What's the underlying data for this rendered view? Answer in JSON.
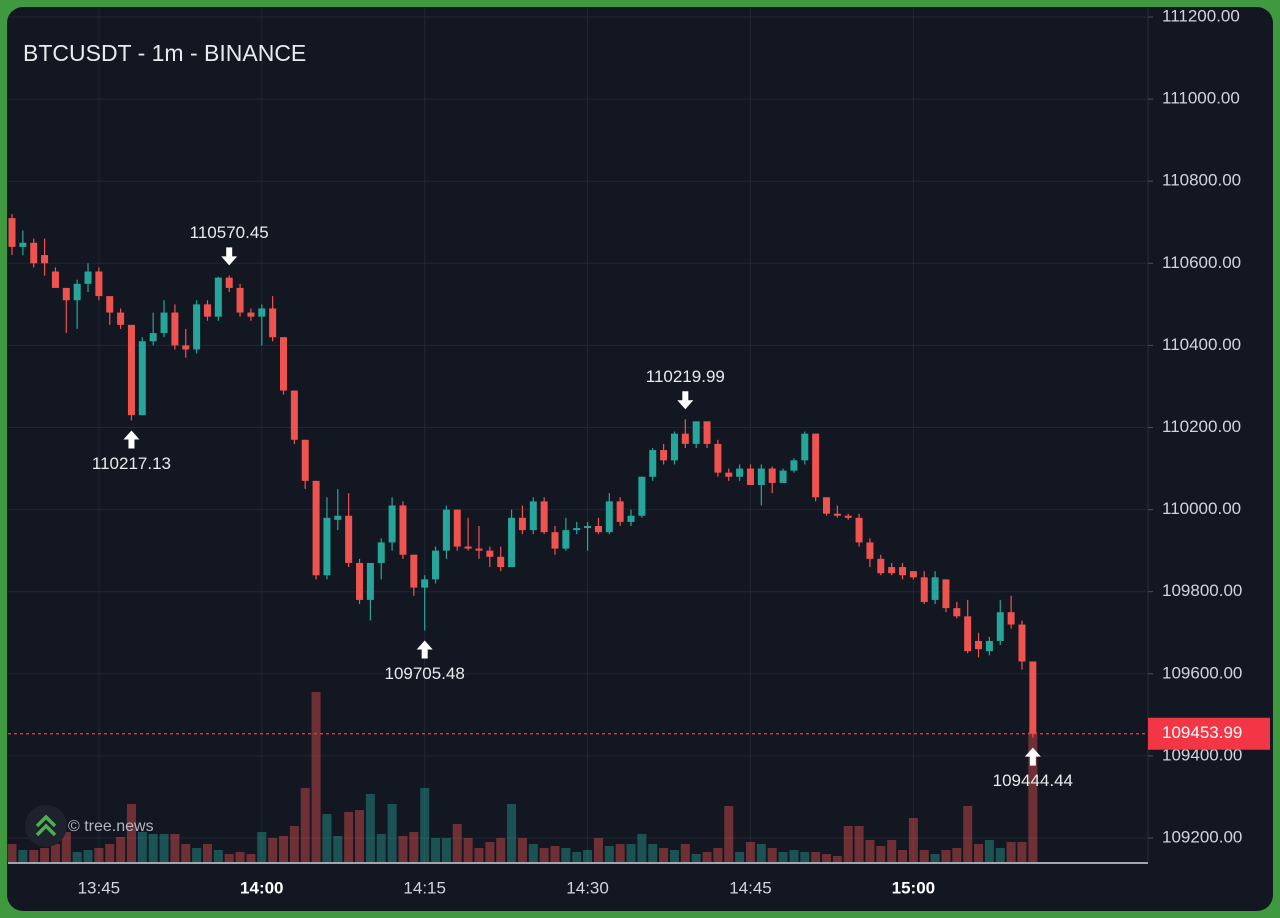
{
  "chart_data": {
    "type": "candlestick",
    "title": "BTCUSDT - 1m - BINANCE",
    "watermark": "© tree.news",
    "up_color": "#26a69a",
    "down_color": "#ef5350",
    "grid": true,
    "x": [
      "13:37",
      "13:38",
      "13:39",
      "13:40",
      "13:41",
      "13:42",
      "13:43",
      "13:44",
      "13:45",
      "13:46",
      "13:47",
      "13:48",
      "13:49",
      "13:50",
      "13:51",
      "13:52",
      "13:53",
      "13:54",
      "13:55",
      "13:56",
      "13:57",
      "13:58",
      "13:59",
      "14:00",
      "14:01",
      "14:02",
      "14:03",
      "14:04",
      "14:05",
      "14:06",
      "14:07",
      "14:08",
      "14:09",
      "14:10",
      "14:11",
      "14:12",
      "14:13",
      "14:14",
      "14:15",
      "14:16",
      "14:17",
      "14:18",
      "14:19",
      "14:20",
      "14:21",
      "14:22",
      "14:23",
      "14:24",
      "14:25",
      "14:26",
      "14:27",
      "14:28",
      "14:29",
      "14:30",
      "14:31",
      "14:32",
      "14:33",
      "14:34",
      "14:35",
      "14:36",
      "14:37",
      "14:38",
      "14:39",
      "14:40",
      "14:41",
      "14:42",
      "14:43",
      "14:44",
      "14:45",
      "14:46",
      "14:47",
      "14:48",
      "14:49",
      "14:50",
      "14:51",
      "14:52",
      "14:53",
      "14:54",
      "14:55",
      "14:56",
      "14:57",
      "14:58",
      "14:59",
      "15:00",
      "15:01",
      "15:02",
      "15:03",
      "15:04",
      "15:05",
      "15:06",
      "15:07",
      "15:08",
      "15:09",
      "15:10",
      "15:11"
    ],
    "open": [
      110710,
      110640,
      110650,
      110620,
      110580,
      110540,
      110510,
      110550,
      110580,
      110520,
      110480,
      110450,
      110230,
      110410,
      110430,
      110480,
      110400,
      110390,
      110500,
      110470,
      110565,
      110540,
      110480,
      110470,
      110490,
      110420,
      110290,
      110170,
      110070,
      109840,
      109975,
      109985,
      109870,
      109780,
      109870,
      109920,
      110010,
      109890,
      109810,
      109830,
      109900,
      110000,
      109910,
      109905,
      109900,
      109885,
      109860,
      109980,
      109950,
      110020,
      109945,
      109905,
      109950,
      109955,
      109960,
      109945,
      110020,
      109970,
      109985,
      110080,
      110145,
      110120,
      110185,
      110160,
      110215,
      110160,
      110090,
      110080,
      110100,
      110060,
      110100,
      110065,
      110095,
      110120,
      110185,
      110030,
      109990,
      109985,
      109980,
      109920,
      109880,
      109860,
      109860,
      109850,
      109835,
      109780,
      109830,
      109760,
      109740,
      109680,
      109655,
      109680,
      109750,
      109720,
      109630
    ],
    "high": [
      110720,
      110680,
      110660,
      110660,
      110590,
      110540,
      110560,
      110600,
      110590,
      110520,
      110490,
      110450,
      110420,
      110480,
      110510,
      110500,
      110440,
      110510,
      110510,
      110567,
      110570.45,
      110550,
      110490,
      110500,
      110520,
      110420,
      110290,
      110170,
      110070,
      110030,
      110050,
      110040,
      109880,
      109870,
      109930,
      110030,
      110020,
      109890,
      109840,
      109910,
      110010,
      110000,
      109980,
      109960,
      109910,
      109910,
      110000,
      110010,
      110030,
      110030,
      109960,
      109980,
      109970,
      109970,
      109980,
      110040,
      110030,
      110000,
      110080,
      110150,
      110160,
      110190,
      110219.99,
      110215,
      110215,
      110170,
      110100,
      110110,
      110110,
      110110,
      110105,
      110100,
      110125,
      110190,
      110185,
      110030,
      110010,
      109990,
      109990,
      109930,
      109890,
      109870,
      109870,
      109850,
      109850,
      109850,
      109830,
      109775,
      109780,
      109700,
      109690,
      109780,
      109790,
      109730,
      109630
    ],
    "low": [
      110620,
      110620,
      110590,
      110570,
      110540,
      110430,
      110440,
      110530,
      110510,
      110450,
      110440,
      110217.13,
      110230,
      110400,
      110420,
      110390,
      110370,
      110380,
      110460,
      110460,
      110530,
      110470,
      110460,
      110400,
      110410,
      110280,
      110160,
      110050,
      109830,
      109830,
      109950,
      109860,
      109770,
      109730,
      109830,
      109900,
      109880,
      109790,
      109705.48,
      109820,
      109880,
      109900,
      109900,
      109880,
      109860,
      109850,
      109860,
      109940,
      109940,
      109940,
      109890,
      109900,
      109940,
      109900,
      109940,
      109940,
      109960,
      109960,
      109980,
      110070,
      110110,
      110110,
      110150,
      110150,
      110150,
      110080,
      110070,
      110070,
      110060,
      110010,
      110040,
      110070,
      110090,
      110110,
      110020,
      109985,
      109980,
      109975,
      109910,
      109860,
      109840,
      109840,
      109830,
      109830,
      109770,
      109770,
      109750,
      109735,
      109650,
      109640,
      109645,
      109670,
      109710,
      109610,
      109444.44
    ],
    "close": [
      110640,
      110650,
      110600,
      110600,
      110540,
      110510,
      110550,
      110580,
      110520,
      110480,
      110450,
      110230,
      110410,
      110430,
      110480,
      110400,
      110390,
      110500,
      110470,
      110565,
      110540,
      110480,
      110470,
      110490,
      110420,
      110290,
      110170,
      110070,
      109840,
      109980,
      109985,
      109870,
      109780,
      109870,
      109920,
      110010,
      109890,
      109810,
      109830,
      109900,
      110000,
      109910,
      109905,
      109900,
      109885,
      109860,
      109980,
      109950,
      110020,
      109945,
      109905,
      109950,
      109955,
      109960,
      109945,
      110020,
      109970,
      109985,
      110080,
      110145,
      110120,
      110185,
      110160,
      110215,
      110160,
      110090,
      110080,
      110100,
      110060,
      110100,
      110065,
      110095,
      110120,
      110185,
      110030,
      109990,
      109985,
      109980,
      109920,
      109880,
      109845,
      109845,
      109840,
      109835,
      109775,
      109835,
      109760,
      109740,
      109655,
      109660,
      109680,
      109750,
      109720,
      109630,
      109453.99
    ],
    "volume": [
      18,
      12,
      12,
      14,
      18,
      30,
      10,
      12,
      14,
      18,
      25,
      58,
      30,
      28,
      28,
      28,
      18,
      14,
      18,
      12,
      8,
      10,
      8,
      30,
      24,
      26,
      36,
      74,
      170,
      48,
      26,
      50,
      52,
      68,
      28,
      58,
      26,
      30,
      74,
      24,
      24,
      38,
      24,
      14,
      20,
      24,
      58,
      24,
      18,
      14,
      16,
      14,
      10,
      12,
      24,
      16,
      18,
      18,
      28,
      18,
      14,
      12,
      18,
      8,
      10,
      14,
      56,
      10,
      20,
      18,
      14,
      10,
      12,
      10,
      10,
      8,
      6,
      36,
      36,
      22,
      16,
      22,
      12,
      44,
      12,
      8,
      12,
      14,
      56,
      18,
      22,
      14,
      20,
      20,
      130
    ],
    "ylim": [
      109141.5,
      111200
    ],
    "yticks": [
      {
        "value": 109200,
        "label": "109200.00"
      },
      {
        "value": 109400,
        "label": "109400.00"
      },
      {
        "value": 109600,
        "label": "109600.00"
      },
      {
        "value": 109800,
        "label": "109800.00"
      },
      {
        "value": 110000,
        "label": "110000.00"
      },
      {
        "value": 110200,
        "label": "110200.00"
      },
      {
        "value": 110400,
        "label": "110400.00"
      },
      {
        "value": 110600,
        "label": "110600.00"
      },
      {
        "value": 110800,
        "label": "110800.00"
      },
      {
        "value": 111000,
        "label": "111000.00"
      },
      {
        "value": 111200,
        "label": "111200.00"
      }
    ],
    "xticks": [
      "13:45",
      "14:00",
      "14:15",
      "14:30",
      "14:45",
      "15:00"
    ],
    "markers": [
      {
        "x": "13:48",
        "value": 110217.13,
        "side": "below"
      },
      {
        "x": "13:57",
        "value": 110570.45,
        "side": "above"
      },
      {
        "x": "14:15",
        "value": 109705.48,
        "side": "below"
      },
      {
        "x": "14:39",
        "value": 110219.99,
        "side": "above"
      },
      {
        "x": "15:11",
        "value": 109444.44,
        "side": "below"
      }
    ],
    "last_price": {
      "value": 109453.99,
      "color": "#f23645"
    }
  }
}
